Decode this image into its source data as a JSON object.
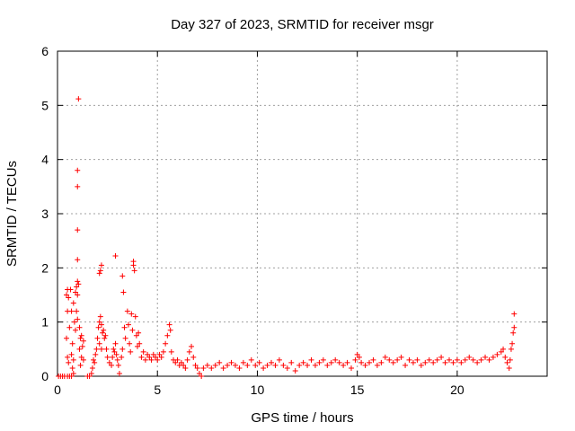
{
  "chart_data": {
    "type": "scatter",
    "title": "Day 327 of 2023, SRMTID for receiver msgr",
    "xlabel": "GPS time / hours",
    "ylabel": "SRMTID / TECUs",
    "xlim": [
      0,
      24.5
    ],
    "ylim": [
      0,
      6
    ],
    "xticks": [
      0,
      5,
      10,
      15,
      20
    ],
    "yticks": [
      0,
      1,
      2,
      3,
      4,
      5,
      6
    ],
    "grid": true,
    "marker": "+",
    "color": "#ff0000",
    "series": [
      {
        "name": "SRMTID",
        "points": [
          [
            0.05,
            0.0
          ],
          [
            0.15,
            0.0
          ],
          [
            0.25,
            0.0
          ],
          [
            0.35,
            0.0
          ],
          [
            0.5,
            0.0
          ],
          [
            0.6,
            0.0
          ],
          [
            0.7,
            0.0
          ],
          [
            0.8,
            0.05
          ],
          [
            0.45,
            1.5
          ],
          [
            0.5,
            1.6
          ],
          [
            0.55,
            1.45
          ],
          [
            0.5,
            1.2
          ],
          [
            0.6,
            0.9
          ],
          [
            0.45,
            0.7
          ],
          [
            0.5,
            0.35
          ],
          [
            0.55,
            0.25
          ],
          [
            0.65,
            1.6
          ],
          [
            0.7,
            1.2
          ],
          [
            0.75,
            0.6
          ],
          [
            0.7,
            0.4
          ],
          [
            0.8,
            0.3
          ],
          [
            0.75,
            0.15
          ],
          [
            0.85,
            1.0
          ],
          [
            0.8,
            1.35
          ],
          [
            0.9,
            1.55
          ],
          [
            0.95,
            1.65
          ],
          [
            1.0,
            1.75
          ],
          [
            1.05,
            1.7
          ],
          [
            1.0,
            1.5
          ],
          [
            0.95,
            1.2
          ],
          [
            1.0,
            1.05
          ],
          [
            0.9,
            0.85
          ],
          [
            1.0,
            2.15
          ],
          [
            1.0,
            2.7
          ],
          [
            1.0,
            3.5
          ],
          [
            1.0,
            3.8
          ],
          [
            1.05,
            5.12
          ],
          [
            1.1,
            0.9
          ],
          [
            1.15,
            0.7
          ],
          [
            1.2,
            0.75
          ],
          [
            1.25,
            0.55
          ],
          [
            1.3,
            0.65
          ],
          [
            1.1,
            0.5
          ],
          [
            1.2,
            0.35
          ],
          [
            1.3,
            0.3
          ],
          [
            1.15,
            0.2
          ],
          [
            1.5,
            0.0
          ],
          [
            1.6,
            0.0
          ],
          [
            1.7,
            0.05
          ],
          [
            1.75,
            0.15
          ],
          [
            1.8,
            0.3
          ],
          [
            1.85,
            0.25
          ],
          [
            1.9,
            0.4
          ],
          [
            1.95,
            0.5
          ],
          [
            2.0,
            0.7
          ],
          [
            2.05,
            0.9
          ],
          [
            2.1,
            1.0
          ],
          [
            2.15,
            1.1
          ],
          [
            2.2,
            0.95
          ],
          [
            2.25,
            0.8
          ],
          [
            2.1,
            0.6
          ],
          [
            2.2,
            0.5
          ],
          [
            2.1,
            1.9
          ],
          [
            2.2,
            2.05
          ],
          [
            2.15,
            1.95
          ],
          [
            2.3,
            0.85
          ],
          [
            2.35,
            0.7
          ],
          [
            2.4,
            0.75
          ],
          [
            2.45,
            0.5
          ],
          [
            2.5,
            0.35
          ],
          [
            2.6,
            0.25
          ],
          [
            2.7,
            0.2
          ],
          [
            2.75,
            0.35
          ],
          [
            2.8,
            0.5
          ],
          [
            2.85,
            0.45
          ],
          [
            2.9,
            0.6
          ],
          [
            2.95,
            0.4
          ],
          [
            3.0,
            0.3
          ],
          [
            2.9,
            2.22
          ],
          [
            3.05,
            0.2
          ],
          [
            3.1,
            0.05
          ],
          [
            3.2,
            0.35
          ],
          [
            3.25,
            0.5
          ],
          [
            3.3,
            1.55
          ],
          [
            3.25,
            1.85
          ],
          [
            3.35,
            0.9
          ],
          [
            3.4,
            0.7
          ],
          [
            3.5,
            1.2
          ],
          [
            3.55,
            0.95
          ],
          [
            3.6,
            0.6
          ],
          [
            3.65,
            0.45
          ],
          [
            3.7,
            1.15
          ],
          [
            3.75,
            0.85
          ],
          [
            3.8,
            2.05
          ],
          [
            3.8,
            2.12
          ],
          [
            3.85,
            1.95
          ],
          [
            3.9,
            1.1
          ],
          [
            3.95,
            0.75
          ],
          [
            4.0,
            0.55
          ],
          [
            4.05,
            0.8
          ],
          [
            4.1,
            0.6
          ],
          [
            4.2,
            0.35
          ],
          [
            4.3,
            0.45
          ],
          [
            4.4,
            0.3
          ],
          [
            4.5,
            0.4
          ],
          [
            4.6,
            0.35
          ],
          [
            4.7,
            0.3
          ],
          [
            4.8,
            0.4
          ],
          [
            4.9,
            0.35
          ],
          [
            5.0,
            0.3
          ],
          [
            5.1,
            0.4
          ],
          [
            5.2,
            0.35
          ],
          [
            5.3,
            0.45
          ],
          [
            5.4,
            0.6
          ],
          [
            5.5,
            0.75
          ],
          [
            5.6,
            0.95
          ],
          [
            5.65,
            0.85
          ],
          [
            5.7,
            0.45
          ],
          [
            5.8,
            0.3
          ],
          [
            5.9,
            0.25
          ],
          [
            6.0,
            0.3
          ],
          [
            6.1,
            0.2
          ],
          [
            6.2,
            0.25
          ],
          [
            6.3,
            0.2
          ],
          [
            6.4,
            0.15
          ],
          [
            6.5,
            0.3
          ],
          [
            6.6,
            0.45
          ],
          [
            6.7,
            0.55
          ],
          [
            6.8,
            0.35
          ],
          [
            6.9,
            0.2
          ],
          [
            7.0,
            0.15
          ],
          [
            7.1,
            0.05
          ],
          [
            7.2,
            0.0
          ],
          [
            7.3,
            0.15
          ],
          [
            7.5,
            0.2
          ],
          [
            7.7,
            0.15
          ],
          [
            7.9,
            0.2
          ],
          [
            8.1,
            0.25
          ],
          [
            8.3,
            0.15
          ],
          [
            8.5,
            0.2
          ],
          [
            8.7,
            0.25
          ],
          [
            8.9,
            0.2
          ],
          [
            9.1,
            0.15
          ],
          [
            9.3,
            0.25
          ],
          [
            9.5,
            0.2
          ],
          [
            9.7,
            0.3
          ],
          [
            9.9,
            0.2
          ],
          [
            10.1,
            0.25
          ],
          [
            10.3,
            0.15
          ],
          [
            10.5,
            0.2
          ],
          [
            10.7,
            0.25
          ],
          [
            10.9,
            0.2
          ],
          [
            11.1,
            0.3
          ],
          [
            11.3,
            0.2
          ],
          [
            11.5,
            0.15
          ],
          [
            11.7,
            0.25
          ],
          [
            11.9,
            0.1
          ],
          [
            12.1,
            0.2
          ],
          [
            12.3,
            0.25
          ],
          [
            12.5,
            0.2
          ],
          [
            12.7,
            0.3
          ],
          [
            12.9,
            0.2
          ],
          [
            13.1,
            0.25
          ],
          [
            13.3,
            0.3
          ],
          [
            13.5,
            0.2
          ],
          [
            13.7,
            0.25
          ],
          [
            13.9,
            0.3
          ],
          [
            14.1,
            0.25
          ],
          [
            14.3,
            0.2
          ],
          [
            14.5,
            0.25
          ],
          [
            14.7,
            0.15
          ],
          [
            14.9,
            0.3
          ],
          [
            15.0,
            0.4
          ],
          [
            15.1,
            0.35
          ],
          [
            15.2,
            0.25
          ],
          [
            15.4,
            0.2
          ],
          [
            15.6,
            0.25
          ],
          [
            15.8,
            0.3
          ],
          [
            16.0,
            0.2
          ],
          [
            16.2,
            0.25
          ],
          [
            16.4,
            0.35
          ],
          [
            16.6,
            0.3
          ],
          [
            16.8,
            0.25
          ],
          [
            17.0,
            0.3
          ],
          [
            17.2,
            0.35
          ],
          [
            17.4,
            0.2
          ],
          [
            17.6,
            0.3
          ],
          [
            17.8,
            0.25
          ],
          [
            18.0,
            0.3
          ],
          [
            18.2,
            0.2
          ],
          [
            18.4,
            0.25
          ],
          [
            18.6,
            0.3
          ],
          [
            18.8,
            0.25
          ],
          [
            19.0,
            0.3
          ],
          [
            19.2,
            0.35
          ],
          [
            19.4,
            0.25
          ],
          [
            19.6,
            0.3
          ],
          [
            19.8,
            0.25
          ],
          [
            20.0,
            0.3
          ],
          [
            20.2,
            0.25
          ],
          [
            20.4,
            0.3
          ],
          [
            20.6,
            0.35
          ],
          [
            20.8,
            0.3
          ],
          [
            21.0,
            0.25
          ],
          [
            21.2,
            0.3
          ],
          [
            21.4,
            0.35
          ],
          [
            21.6,
            0.3
          ],
          [
            21.8,
            0.35
          ],
          [
            22.0,
            0.4
          ],
          [
            22.2,
            0.45
          ],
          [
            22.3,
            0.5
          ],
          [
            22.4,
            0.35
          ],
          [
            22.5,
            0.25
          ],
          [
            22.6,
            0.15
          ],
          [
            22.65,
            0.3
          ],
          [
            22.7,
            0.5
          ],
          [
            22.75,
            0.6
          ],
          [
            22.8,
            0.8
          ],
          [
            22.85,
            0.9
          ],
          [
            22.85,
            1.15
          ]
        ]
      }
    ]
  }
}
